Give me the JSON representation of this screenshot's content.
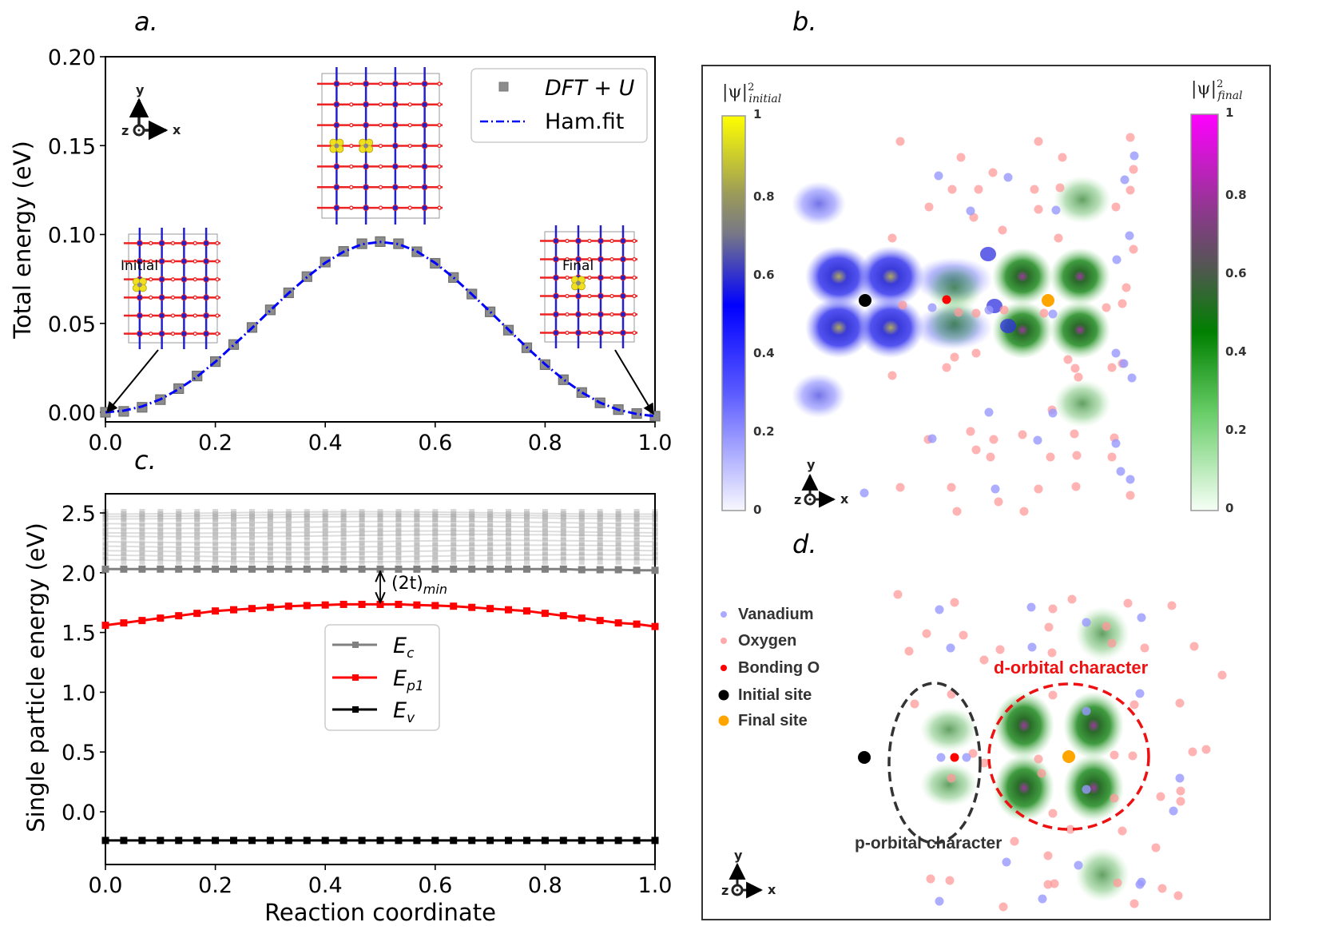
{
  "panels": {
    "a": "a.",
    "b": "b.",
    "c": "c.",
    "d": "d."
  },
  "chart_data": [
    {
      "id": "a",
      "type": "line",
      "title": "",
      "xlabel": "",
      "ylabel": "Total energy (eV)",
      "xlim": [
        0.0,
        1.0
      ],
      "ylim": [
        -0.005,
        0.2
      ],
      "xticks": [
        "0.0",
        "0.2",
        "0.4",
        "0.6",
        "0.8",
        "1.0"
      ],
      "yticks": [
        "0.00",
        "0.05",
        "0.10",
        "0.15",
        "0.20"
      ],
      "grid": false,
      "legend_position": "top-right",
      "series": [
        {
          "name": "DFT + U",
          "style": "gray-square-markers",
          "color": "#8c8c8c",
          "x": [
            0.0,
            0.0333,
            0.0667,
            0.1,
            0.1333,
            0.1667,
            0.2,
            0.2333,
            0.2667,
            0.3,
            0.3333,
            0.3667,
            0.4,
            0.4333,
            0.4667,
            0.5,
            0.5333,
            0.5667,
            0.6,
            0.6333,
            0.6667,
            0.7,
            0.7333,
            0.7667,
            0.8,
            0.8333,
            0.8667,
            0.9,
            0.9333,
            0.9667,
            1.0
          ],
          "y": [
            0.0,
            0.0005,
            0.0028,
            0.0071,
            0.0133,
            0.0204,
            0.0285,
            0.0381,
            0.0477,
            0.0576,
            0.0672,
            0.0763,
            0.0845,
            0.0905,
            0.0948,
            0.096,
            0.0948,
            0.0903,
            0.0838,
            0.0758,
            0.0665,
            0.0565,
            0.0462,
            0.0363,
            0.0268,
            0.0183,
            0.0111,
            0.0053,
            0.0015,
            -0.0007,
            -0.0022
          ]
        },
        {
          "name": "Ham.fit",
          "style": "dash-dot",
          "color": "#0000ff",
          "x": [
            0.0,
            0.0333,
            0.0667,
            0.1,
            0.1333,
            0.1667,
            0.2,
            0.2333,
            0.2667,
            0.3,
            0.3333,
            0.3667,
            0.4,
            0.4333,
            0.4667,
            0.5,
            0.5333,
            0.5667,
            0.6,
            0.6333,
            0.6667,
            0.7,
            0.7333,
            0.7667,
            0.8,
            0.8333,
            0.8667,
            0.9,
            0.9333,
            0.9667,
            1.0
          ],
          "y": [
            0.0,
            0.0009,
            0.0033,
            0.0073,
            0.013,
            0.02,
            0.0284,
            0.0378,
            0.0474,
            0.0573,
            0.067,
            0.076,
            0.0841,
            0.0903,
            0.0945,
            0.0958,
            0.0946,
            0.0905,
            0.084,
            0.0758,
            0.0664,
            0.0566,
            0.0465,
            0.0365,
            0.027,
            0.0185,
            0.0112,
            0.0054,
            0.0014,
            -0.001,
            -0.0022
          ]
        }
      ],
      "insets": [
        {
          "label": "Initial",
          "position": "left"
        },
        {
          "label": "",
          "position": "top-center"
        },
        {
          "label": "Final",
          "position": "right"
        }
      ],
      "axes_triad": {
        "x": "x",
        "y": "y",
        "z": "z"
      }
    },
    {
      "id": "c",
      "type": "line",
      "title": "",
      "xlabel": "Reaction coordinate",
      "ylabel": "Single particle energy (eV)",
      "xlim": [
        0.0,
        1.0
      ],
      "ylim": [
        -0.35,
        2.65
      ],
      "xticks": [
        "0.0",
        "0.2",
        "0.4",
        "0.6",
        "0.8",
        "1.0"
      ],
      "yticks": [
        "0.0",
        "0.5",
        "1.0",
        "1.5",
        "2.0",
        "2.5"
      ],
      "grid": false,
      "legend_position": "center",
      "annotation": {
        "text": "(2t)",
        "subscript": "min",
        "x": 0.5,
        "from": 1.73,
        "to": 2.03
      },
      "x": [
        0.0,
        0.0333,
        0.0667,
        0.1,
        0.1333,
        0.1667,
        0.2,
        0.2333,
        0.2667,
        0.3,
        0.3333,
        0.3667,
        0.4,
        0.4333,
        0.4667,
        0.5,
        0.5333,
        0.5667,
        0.6,
        0.6333,
        0.6667,
        0.7,
        0.7333,
        0.7667,
        0.8,
        0.8333,
        0.8667,
        0.9,
        0.9333,
        0.9667,
        1.0
      ],
      "series": [
        {
          "name": "E_c",
          "label_main": "E",
          "label_sub": "c",
          "color": "#808080",
          "y": [
            2.03,
            2.03,
            2.03,
            2.03,
            2.03,
            2.03,
            2.03,
            2.03,
            2.03,
            2.03,
            2.03,
            2.03,
            2.03,
            2.03,
            2.03,
            2.03,
            2.03,
            2.03,
            2.03,
            2.03,
            2.03,
            2.03,
            2.03,
            2.03,
            2.03,
            2.03,
            2.025,
            2.025,
            2.025,
            2.02,
            2.02
          ]
        },
        {
          "name": "E_p1",
          "label_main": "E",
          "label_sub": "p1",
          "color": "#ff0000",
          "y": [
            1.56,
            1.58,
            1.6,
            1.62,
            1.64,
            1.66,
            1.68,
            1.69,
            1.7,
            1.71,
            1.72,
            1.725,
            1.73,
            1.735,
            1.735,
            1.735,
            1.735,
            1.73,
            1.725,
            1.72,
            1.71,
            1.7,
            1.69,
            1.68,
            1.66,
            1.64,
            1.62,
            1.6,
            1.58,
            1.57,
            1.55
          ]
        },
        {
          "name": "E_v",
          "label_main": "E",
          "label_sub": "v",
          "color": "#000000",
          "y": [
            -0.24,
            -0.24,
            -0.24,
            -0.24,
            -0.24,
            -0.24,
            -0.24,
            -0.24,
            -0.24,
            -0.24,
            -0.24,
            -0.24,
            -0.24,
            -0.24,
            -0.24,
            -0.24,
            -0.24,
            -0.24,
            -0.24,
            -0.24,
            -0.24,
            -0.24,
            -0.24,
            -0.24,
            -0.24,
            -0.24,
            -0.24,
            -0.24,
            -0.24,
            -0.24,
            -0.24
          ]
        }
      ],
      "background_bands": [
        2.1,
        2.14,
        2.18,
        2.22,
        2.26,
        2.31,
        2.34,
        2.38,
        2.42,
        2.46,
        2.48,
        2.5
      ]
    }
  ],
  "panel_b": {
    "colorbar_initial": {
      "title_main": "|ψ|",
      "title_sup": "2",
      "title_sub": "initial",
      "ticks": [
        "1",
        "0.8",
        "0.6",
        "0.4",
        "0.2",
        "0"
      ],
      "colors": [
        "#ffff00",
        "#808080",
        "#0000ff",
        "#f4f4ff"
      ]
    },
    "colorbar_final": {
      "title_main": "|ψ|",
      "title_sup": "2",
      "title_sub": "final",
      "ticks": [
        "1",
        "0.8",
        "0.6",
        "0.4",
        "0.2",
        "0"
      ],
      "colors": [
        "#ff00ff",
        "#555555",
        "#008000",
        "#f4fff4"
      ]
    },
    "axes_triad": {
      "x": "x",
      "y": "y",
      "z": "z"
    }
  },
  "panel_d": {
    "legend": [
      {
        "label": "Vanadium",
        "color": "#aaaaff"
      },
      {
        "label": "Oxygen",
        "color": "#ffaaaa"
      },
      {
        "label": "Bonding O",
        "color": "#ff0000"
      },
      {
        "label": "Initial site",
        "color": "#000000"
      },
      {
        "label": "Final site",
        "color": "#ffa500"
      }
    ],
    "annotations": {
      "d_orbital": "d-orbital character",
      "p_orbital": "p-orbital character"
    },
    "axes_triad": {
      "x": "x",
      "y": "y",
      "z": "z"
    }
  },
  "colors": {
    "dft_marker": "#8c8c8c",
    "ham_fit": "#0000ff",
    "ec": "#808080",
    "ep1": "#ff0000",
    "ev": "#000000",
    "vanadium": "#aaaaff",
    "oxygen": "#ffaaaa",
    "bonding_o": "#ff0000",
    "initial_site": "#000000",
    "final_site": "#ffa500"
  }
}
